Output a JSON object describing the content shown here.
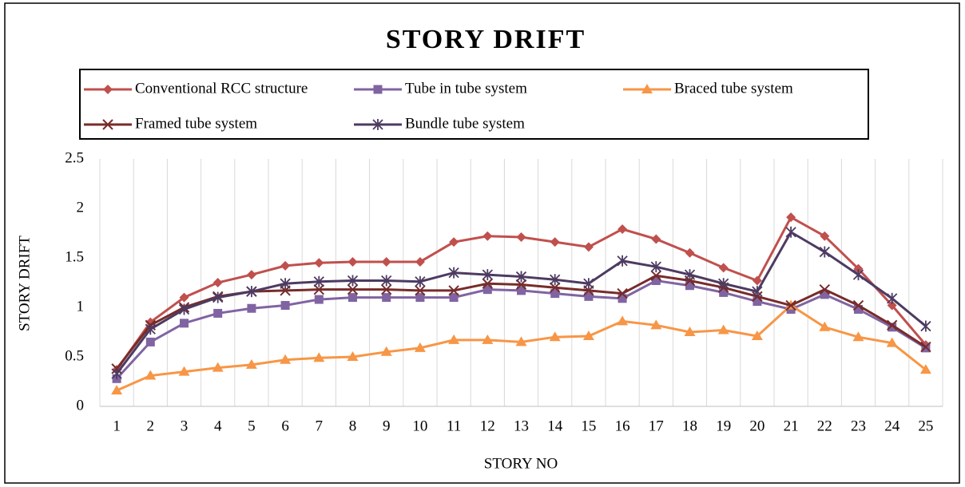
{
  "chart_data": {
    "type": "line",
    "title": "STORY DRIFT",
    "x_label": "STORY NO",
    "y_label": "STORY DRIFT",
    "categories": [
      "1",
      "2",
      "3",
      "4",
      "5",
      "6",
      "7",
      "8",
      "9",
      "10",
      "11",
      "12",
      "13",
      "14",
      "15",
      "16",
      "17",
      "18",
      "19",
      "20",
      "21",
      "22",
      "23",
      "24",
      "25"
    ],
    "series": [
      {
        "name": "Conventional RCC structure",
        "color": "#c0504d",
        "marker": "diamond",
        "values": [
          0.37,
          0.85,
          1.1,
          1.25,
          1.33,
          1.42,
          1.45,
          1.46,
          1.46,
          1.46,
          1.66,
          1.72,
          1.71,
          1.66,
          1.61,
          1.79,
          1.69,
          1.55,
          1.4,
          1.27,
          1.91,
          1.72,
          1.39,
          1.02,
          0.62
        ]
      },
      {
        "name": "Tube in tube system",
        "color": "#8064a2",
        "marker": "square",
        "values": [
          0.28,
          0.65,
          0.84,
          0.94,
          0.99,
          1.02,
          1.08,
          1.1,
          1.1,
          1.1,
          1.1,
          1.18,
          1.17,
          1.14,
          1.11,
          1.09,
          1.27,
          1.22,
          1.15,
          1.06,
          0.98,
          1.13,
          0.98,
          0.8,
          0.59
        ]
      },
      {
        "name": "Braced tube system",
        "color": "#f79646",
        "marker": "triangle",
        "values": [
          0.16,
          0.31,
          0.35,
          0.39,
          0.42,
          0.47,
          0.49,
          0.5,
          0.55,
          0.59,
          0.67,
          0.67,
          0.65,
          0.7,
          0.71,
          0.86,
          0.82,
          0.75,
          0.77,
          0.71,
          1.02,
          0.8,
          0.7,
          0.64,
          0.37
        ]
      },
      {
        "name": "Framed tube system",
        "color": "#772c2a",
        "marker": "x",
        "values": [
          0.38,
          0.82,
          1.0,
          1.11,
          1.16,
          1.17,
          1.18,
          1.18,
          1.18,
          1.17,
          1.17,
          1.24,
          1.23,
          1.2,
          1.17,
          1.14,
          1.32,
          1.27,
          1.2,
          1.11,
          1.02,
          1.18,
          1.02,
          0.82,
          0.6
        ]
      },
      {
        "name": "Bundle tube system",
        "color": "#4d3b62",
        "marker": "star",
        "values": [
          0.33,
          0.78,
          0.98,
          1.1,
          1.16,
          1.24,
          1.26,
          1.27,
          1.27,
          1.26,
          1.35,
          1.33,
          1.31,
          1.28,
          1.24,
          1.47,
          1.41,
          1.33,
          1.24,
          1.16,
          1.76,
          1.56,
          1.33,
          1.09,
          0.81
        ]
      }
    ],
    "ylim": [
      0,
      2.5
    ],
    "yticks": [
      0,
      0.5,
      1,
      1.5,
      2,
      2.5
    ],
    "grid": "x",
    "legend": "top"
  }
}
